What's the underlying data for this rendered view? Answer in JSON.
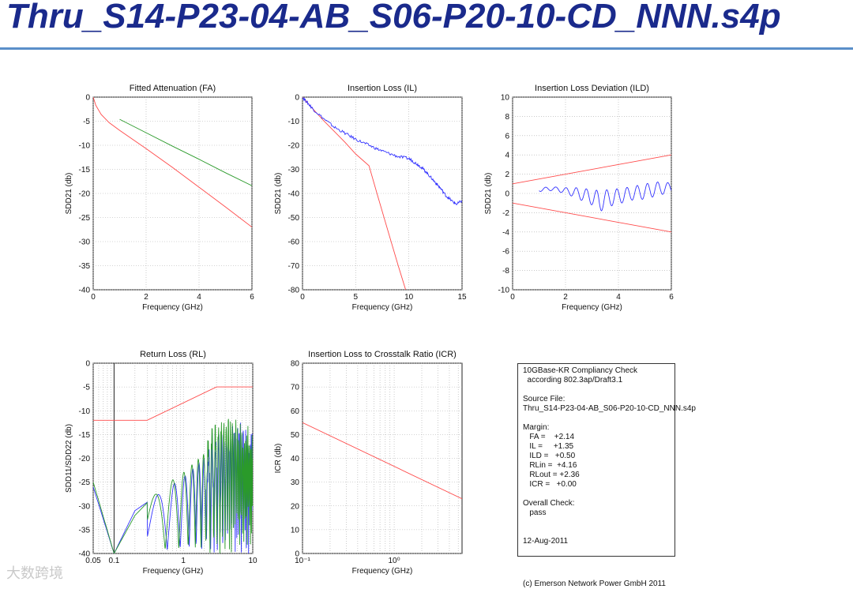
{
  "title": "Thru_S14-P23-04-AB_S06-P20-10-CD_NNN.s4p",
  "colors": {
    "title": "#1a2a8c",
    "rule": "#5a8fc9",
    "red": "#ff4a4a",
    "green": "#2a9a2a",
    "blue": "#3333ff"
  },
  "info_box": {
    "lines": [
      "10GBase-KR Compliancy Check",
      "  according 802.3ap/Draft3.1",
      "",
      "Source File:",
      "Thru_S14-P23-04-AB_S06-P20-10-CD_NNN.s4p",
      "",
      "Margin:",
      "   FA =    +2.14",
      "   IL =     +1.35",
      "   ILD =   +0.50",
      "   RLin =  +4.16",
      "   RLout = +2.36",
      "   ICR =   +0.00",
      "",
      "Overall Check:",
      "   pass",
      "",
      "",
      "12-Aug-2011"
    ]
  },
  "copyright": "(c) Emerson Network Power GmbH 2011",
  "watermark": "大数跨境",
  "chart_data": [
    {
      "type": "line",
      "title": "Fitted Attenuation (FA)",
      "xlabel": "Frequency (GHz)",
      "ylabel": "SDD21 (db)",
      "xlim": [
        0,
        6
      ],
      "ylim": [
        -40,
        0
      ],
      "xticks": [
        0,
        2,
        4,
        6
      ],
      "xtick_labels": [
        "0",
        "2",
        "4",
        "6"
      ],
      "yticks": [
        0,
        -5,
        -10,
        -15,
        -20,
        -25,
        -30,
        -35,
        -40
      ],
      "ytick_labels": [
        "0",
        "-5",
        "-10",
        "-15",
        "-20",
        "-25",
        "-30",
        "-35",
        "-40"
      ],
      "xscale": "linear",
      "grid": true,
      "series": [
        {
          "color": "red",
          "x": [
            0.0,
            0.1,
            0.3,
            0.6,
            1.0,
            2.0,
            3.0,
            4.0,
            5.0,
            6.0
          ],
          "y": [
            0.0,
            -1.7,
            -3.6,
            -5.3,
            -6.9,
            -10.7,
            -14.6,
            -18.7,
            -22.8,
            -27.0
          ]
        },
        {
          "color": "green",
          "x": [
            1.0,
            2.0,
            3.0,
            4.0,
            5.0,
            6.0
          ],
          "y": [
            -4.6,
            -7.4,
            -10.2,
            -12.9,
            -15.7,
            -18.4
          ]
        }
      ]
    },
    {
      "type": "line",
      "title": "Insertion Loss (IL)",
      "xlabel": "Frequency (GHz)",
      "ylabel": "SDD21 (db)",
      "xlim": [
        0,
        15
      ],
      "ylim": [
        -80,
        0
      ],
      "xticks": [
        0,
        5,
        10,
        15
      ],
      "xtick_labels": [
        "0",
        "5",
        "10",
        "15"
      ],
      "yticks": [
        0,
        -10,
        -20,
        -30,
        -40,
        -50,
        -60,
        -70,
        -80
      ],
      "ytick_labels": [
        "0",
        "-10",
        "-20",
        "-30",
        "-40",
        "-50",
        "-60",
        "-70",
        "-80"
      ],
      "xscale": "linear",
      "grid": true,
      "series": [
        {
          "color": "red",
          "x": [
            0,
            1,
            2,
            3,
            4,
            5,
            6.25,
            7,
            8,
            9,
            9.7
          ],
          "y": [
            0,
            -5,
            -9.8,
            -14.3,
            -18.8,
            -23.6,
            -28.5,
            -40,
            -55,
            -70,
            -80
          ]
        },
        {
          "color": "blue",
          "noise": 0.6,
          "x": [
            0,
            0.5,
            1,
            2,
            3,
            4,
            5,
            6,
            7,
            8,
            9,
            10,
            10.5,
            11,
            11.5,
            12,
            12.5,
            13,
            13.5,
            14,
            14.5,
            15
          ],
          "y": [
            0,
            -2.5,
            -5,
            -9,
            -12.5,
            -15,
            -17.5,
            -19.5,
            -21.5,
            -23.2,
            -24.7,
            -25.5,
            -27,
            -28.5,
            -30.5,
            -33,
            -35.5,
            -38,
            -41,
            -43,
            -44.5,
            -43
          ]
        }
      ]
    },
    {
      "type": "line",
      "title": "Insertion Loss Deviation (ILD)",
      "xlabel": "Frequency (GHz)",
      "ylabel": "SDD21 (db)",
      "xlim": [
        0,
        6
      ],
      "ylim": [
        -10,
        10
      ],
      "xticks": [
        0,
        2,
        4,
        6
      ],
      "xtick_labels": [
        "0",
        "2",
        "4",
        "6"
      ],
      "yticks": [
        10,
        8,
        6,
        4,
        2,
        0,
        -2,
        -4,
        -6,
        -8,
        -10
      ],
      "ytick_labels": [
        "10",
        "8",
        "6",
        "4",
        "2",
        "0",
        "-2",
        "-4",
        "-6",
        "-8",
        "-10"
      ],
      "xscale": "linear",
      "grid": true,
      "series": [
        {
          "color": "red",
          "x": [
            0,
            6
          ],
          "y": [
            1.0,
            4.0
          ]
        },
        {
          "color": "red",
          "x": [
            0,
            6
          ],
          "y": [
            -1.0,
            -4.0
          ]
        },
        {
          "color": "blue",
          "osc": true,
          "x": [
            1.0,
            1.5,
            2.0,
            2.5,
            3.0,
            3.3,
            3.6,
            4.0,
            4.5,
            5.0,
            5.5,
            6.0
          ],
          "amp": [
            0.2,
            0.2,
            0.3,
            0.6,
            0.8,
            1.1,
            0.9,
            0.8,
            0.7,
            0.8,
            0.7,
            0.5
          ],
          "y": [
            0.4,
            0.5,
            0.3,
            0.0,
            -0.4,
            -0.8,
            -0.5,
            -0.3,
            0.0,
            0.2,
            0.5,
            0.6
          ]
        }
      ]
    },
    {
      "type": "line",
      "title": "Return Loss (RL)",
      "xlabel": "Frequency (GHz)",
      "ylabel": "SDD11/SDD22 (db)",
      "xlim": [
        0.05,
        10
      ],
      "ylim": [
        -40,
        0
      ],
      "xscale": "log",
      "xticks": [
        0.05,
        0.1,
        1,
        10
      ],
      "xtick_labels": [
        "0.05",
        "0.1",
        "1",
        "10"
      ],
      "yticks": [
        0,
        -5,
        -10,
        -15,
        -20,
        -25,
        -30,
        -35,
        -40
      ],
      "ytick_labels": [
        "0",
        "-5",
        "-10",
        "-15",
        "-20",
        "-25",
        "-30",
        "-35",
        "-40"
      ],
      "grid": true,
      "vline": 0.1,
      "series": [
        {
          "color": "red",
          "x": [
            0.05,
            0.3,
            3.0,
            10
          ],
          "y": [
            -12,
            -12,
            -5,
            -5
          ]
        },
        {
          "color": "blue",
          "rl": true,
          "x": [
            0.05,
            0.1,
            0.2,
            0.5,
            1,
            2,
            3,
            5,
            10
          ],
          "y": [
            -26,
            -40,
            -31,
            -27,
            -24,
            -20,
            -16,
            -15,
            -15
          ]
        },
        {
          "color": "green",
          "rl": true,
          "x": [
            0.05,
            0.1,
            0.2,
            0.5,
            1,
            2,
            3,
            5,
            10
          ],
          "y": [
            -25,
            -40,
            -32,
            -26,
            -23,
            -19,
            -14,
            -14,
            -16
          ]
        }
      ]
    },
    {
      "type": "line",
      "title": "Insertion Loss to Crosstalk Ratio (ICR)",
      "xlabel": "Frequency (GHz)",
      "ylabel": "ICR (db)",
      "xlim": [
        0.1,
        5.5
      ],
      "ylim": [
        0,
        80
      ],
      "xscale": "log",
      "xticks": [
        0.1,
        1
      ],
      "xtick_labels": [
        "10⁻¹",
        "10⁰"
      ],
      "yticks": [
        80,
        70,
        60,
        50,
        40,
        30,
        20,
        10,
        0
      ],
      "ytick_labels": [
        "80",
        "70",
        "60",
        "50",
        "40",
        "30",
        "20",
        "10",
        "0"
      ],
      "grid": true,
      "series": [
        {
          "color": "red",
          "x": [
            0.1,
            5.5
          ],
          "y": [
            55.0,
            23.0
          ]
        }
      ]
    }
  ]
}
